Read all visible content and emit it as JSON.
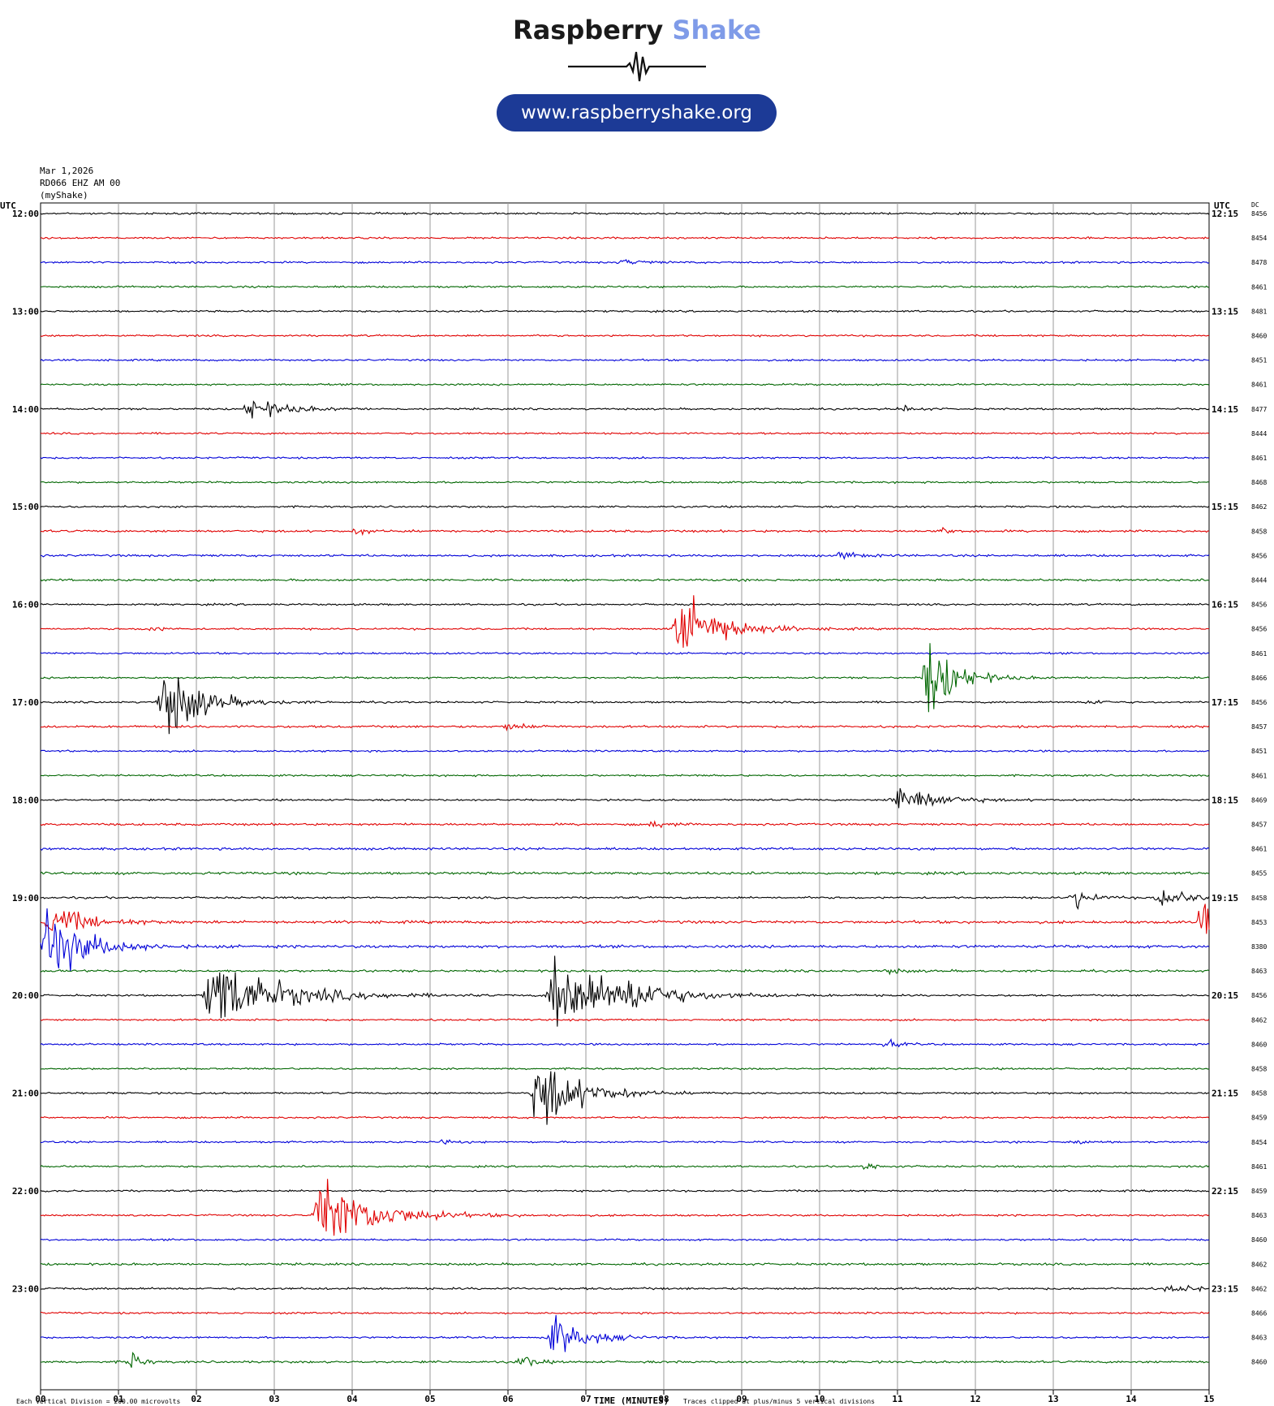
{
  "header": {
    "brand_main": "Raspberry",
    "brand_accent": "Shake",
    "url": "www.raspberryshake.org"
  },
  "meta": {
    "date": "Mar 1,2026",
    "station": "RD066 EHZ AM 00",
    "network": "(myShake)"
  },
  "colors": {
    "cycle": [
      "#000000",
      "#e00000",
      "#0000d8",
      "#006600"
    ],
    "grid": "#9a9a9a"
  },
  "chart_data": {
    "type": "line",
    "subtype": "helicorder",
    "left_axis_label": "UTC",
    "right_axis_label": "UTC",
    "right_column_label": "DC",
    "xlabel": "TIME (MINUTES)",
    "x_ticks": [
      "00",
      "01",
      "02",
      "03",
      "04",
      "05",
      "06",
      "07",
      "08",
      "09",
      "10",
      "11",
      "12",
      "13",
      "14",
      "15"
    ],
    "xlim": [
      0,
      15
    ],
    "footer_left": "Each Vertical Division =  200.00 microvolts",
    "footer_right": "Traces clipped at plus/minus 5 vertical divisions",
    "row_count": 48,
    "minutes_per_row": 15,
    "left_labels": [
      "12:00",
      "13:00",
      "14:00",
      "15:00",
      "16:00",
      "17:00",
      "18:00",
      "19:00",
      "20:00",
      "21:00",
      "22:00",
      "23:00"
    ],
    "right_labels": [
      "12:15",
      "13:15",
      "14:15",
      "15:15",
      "16:15",
      "17:15",
      "18:15",
      "19:15",
      "20:15",
      "21:15",
      "22:15",
      "23:15"
    ],
    "dc_values": [
      8456,
      8454,
      8478,
      8461,
      8481,
      8460,
      8451,
      8461,
      8477,
      8444,
      8461,
      8468,
      8462,
      8458,
      8456,
      8444,
      8456,
      8456,
      8461,
      8466,
      8456,
      8457,
      8451,
      8461,
      8469,
      8457,
      8461,
      8455,
      8458,
      8453,
      8380,
      8463,
      8456,
      8462,
      8460,
      8458,
      8458,
      8459,
      8454,
      8461,
      8459,
      8463,
      8460,
      8462,
      8462,
      8466,
      8463,
      8460
    ],
    "noise_levels": [
      1,
      1,
      1,
      1,
      1,
      1,
      1,
      1,
      1,
      1,
      1,
      1,
      1,
      1.2,
      1.2,
      1.2,
      1,
      1,
      1,
      1,
      1,
      1.2,
      1,
      1,
      1,
      1.2,
      1.3,
      1.4,
      1.1,
      1.5,
      1.5,
      1.2,
      1,
      1,
      1,
      1,
      1,
      1,
      1,
      1,
      1,
      1,
      1,
      1.2,
      1.2,
      1,
      1,
      1.2
    ],
    "events": [
      {
        "row": 2,
        "minute": 7.5,
        "amplitude": 0.3,
        "duration": 0.6
      },
      {
        "row": 8,
        "minute": 2.7,
        "amplitude": 1.3,
        "duration": 0.9
      },
      {
        "row": 8,
        "minute": 11.1,
        "amplitude": 0.4,
        "duration": 0.3
      },
      {
        "row": 13,
        "minute": 4.1,
        "amplitude": 0.4,
        "duration": 0.3
      },
      {
        "row": 13,
        "minute": 11.6,
        "amplitude": 0.4,
        "duration": 0.3
      },
      {
        "row": 14,
        "minute": 10.3,
        "amplitude": 0.4,
        "duration": 0.5
      },
      {
        "row": 17,
        "minute": 1.4,
        "amplitude": 0.4,
        "duration": 0.3
      },
      {
        "row": 17,
        "minute": 8.2,
        "amplitude": 5,
        "duration": 1.0
      },
      {
        "row": 19,
        "minute": 11.4,
        "amplitude": 5,
        "duration": 0.7
      },
      {
        "row": 20,
        "minute": 1.6,
        "amplitude": 5,
        "duration": 0.9
      },
      {
        "row": 20,
        "minute": 13.5,
        "amplitude": 0.4,
        "duration": 0.3
      },
      {
        "row": 21,
        "minute": 6.0,
        "amplitude": 0.4,
        "duration": 0.6
      },
      {
        "row": 24,
        "minute": 11.0,
        "amplitude": 2.2,
        "duration": 0.9
      },
      {
        "row": 25,
        "minute": 7.9,
        "amplitude": 0.5,
        "duration": 0.3
      },
      {
        "row": 28,
        "minute": 13.3,
        "amplitude": 1.2,
        "duration": 0.4
      },
      {
        "row": 28,
        "minute": 14.4,
        "amplitude": 1.4,
        "duration": 0.6
      },
      {
        "row": 29,
        "minute": 0.15,
        "amplitude": 2.0,
        "duration": 0.9
      },
      {
        "row": 29,
        "minute": 14.95,
        "amplitude": 3.5,
        "duration": 0.3
      },
      {
        "row": 30,
        "minute": 0.1,
        "amplitude": 5,
        "duration": 0.9
      },
      {
        "row": 31,
        "minute": 10.9,
        "amplitude": 0.3,
        "duration": 0.4
      },
      {
        "row": 32,
        "minute": 2.2,
        "amplitude": 5,
        "duration": 1.6
      },
      {
        "row": 32,
        "minute": 6.6,
        "amplitude": 5,
        "duration": 1.6
      },
      {
        "row": 32,
        "minute": 7.6,
        "amplitude": 1.3,
        "duration": 0.7
      },
      {
        "row": 34,
        "minute": 10.9,
        "amplitude": 0.5,
        "duration": 0.3
      },
      {
        "row": 36,
        "minute": 6.4,
        "amplitude": 5,
        "duration": 1.0
      },
      {
        "row": 38,
        "minute": 5.2,
        "amplitude": 0.3,
        "duration": 0.3
      },
      {
        "row": 38,
        "minute": 13.3,
        "amplitude": 0.3,
        "duration": 0.3
      },
      {
        "row": 39,
        "minute": 10.6,
        "amplitude": 0.4,
        "duration": 0.4
      },
      {
        "row": 41,
        "minute": 3.6,
        "amplitude": 5,
        "duration": 1.3
      },
      {
        "row": 44,
        "minute": 14.5,
        "amplitude": 0.4,
        "duration": 0.9
      },
      {
        "row": 46,
        "minute": 6.6,
        "amplitude": 2.5,
        "duration": 0.8
      },
      {
        "row": 47,
        "minute": 1.2,
        "amplitude": 1.2,
        "duration": 0.2
      },
      {
        "row": 47,
        "minute": 6.2,
        "amplitude": 0.8,
        "duration": 0.3
      }
    ]
  }
}
